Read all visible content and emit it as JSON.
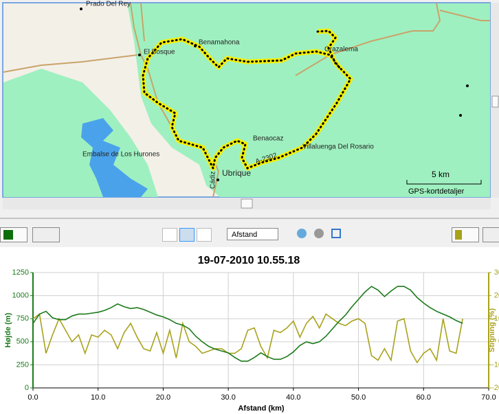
{
  "map": {
    "labels": [
      "Prado Del Rey",
      "El Bosque",
      "Benamahona",
      "Grazalema",
      "Embalse de Los Hurones",
      "Benaocaz",
      "Villaluenga Del Rosario",
      "A-2302",
      "Cádiz",
      "Ubrique"
    ],
    "scale": "5 km",
    "detail": "GPS-kortdetaljer"
  },
  "toolbar": {
    "axis_select": "Afstand"
  },
  "chart_data": {
    "type": "line",
    "title": "19-07-2010 10.55.18",
    "x_label": "Afstand (km)",
    "y_label": "Højde (m)",
    "y2_label": "Stigning (%)",
    "x": [
      0,
      1,
      2,
      3,
      4,
      5,
      6,
      7,
      8,
      9,
      10,
      11,
      12,
      13,
      14,
      15,
      16,
      17,
      18,
      19,
      20,
      21,
      22,
      23,
      24,
      25,
      26,
      27,
      28,
      29,
      30,
      31,
      32,
      33,
      34,
      35,
      36,
      37,
      38,
      39,
      40,
      41,
      42,
      43,
      44,
      45,
      46,
      47,
      48,
      49,
      50,
      51,
      52,
      53,
      54,
      55,
      56,
      57,
      58,
      59,
      60,
      61,
      62,
      63,
      64,
      65,
      66
    ],
    "series": [
      {
        "color": "#1a7a1a",
        "axis": "y",
        "values": [
          700,
          800,
          830,
          760,
          740,
          740,
          780,
          800,
          800,
          810,
          820,
          840,
          870,
          910,
          880,
          860,
          870,
          850,
          820,
          790,
          770,
          740,
          700,
          680,
          640,
          560,
          500,
          450,
          420,
          400,
          380,
          330,
          290,
          290,
          330,
          380,
          340,
          310,
          310,
          340,
          390,
          460,
          500,
          480,
          500,
          560,
          640,
          720,
          790,
          880,
          960,
          1040,
          1100,
          1060,
          990,
          1050,
          1100,
          1100,
          1060,
          980,
          920,
          870,
          830,
          800,
          770,
          730,
          700
        ]
      },
      {
        "color": "#a8a21a",
        "axis": "y2",
        "values": [
          10,
          12,
          -5,
          3,
          10,
          5,
          0,
          3,
          -5,
          3,
          2,
          5,
          3,
          -3,
          4,
          8,
          2,
          -3,
          -4,
          4,
          -5,
          5,
          -7,
          8,
          0,
          -2,
          -5,
          -4,
          -3,
          -3,
          -5,
          -5,
          -3,
          5,
          6,
          -2,
          -7,
          5,
          4,
          6,
          9,
          2,
          8,
          11,
          6,
          12,
          10,
          8,
          7,
          9,
          10,
          8,
          -6,
          -8,
          -3,
          -8,
          9,
          10,
          -4,
          -9,
          -5,
          -3,
          -8,
          10,
          -4,
          -5,
          10
        ]
      }
    ],
    "xlim": [
      0,
      70
    ],
    "xticks": [
      {
        "value": 0,
        "label": "0.0"
      },
      {
        "value": 10,
        "label": "10.0"
      },
      {
        "value": 20,
        "label": "20.0"
      },
      {
        "value": 30,
        "label": "30.0"
      },
      {
        "value": 40,
        "label": "40.0"
      },
      {
        "value": 50,
        "label": "50.0"
      },
      {
        "value": 60,
        "label": "60.0"
      },
      {
        "value": 70,
        "label": "70.0"
      }
    ],
    "ylim": [
      0,
      1250
    ],
    "yticks": [
      0,
      250,
      500,
      750,
      1000,
      1250
    ],
    "y2lim": [
      -20,
      30
    ],
    "y2ticks": [
      -20,
      -10,
      0,
      10,
      20,
      30
    ],
    "grid": true
  }
}
